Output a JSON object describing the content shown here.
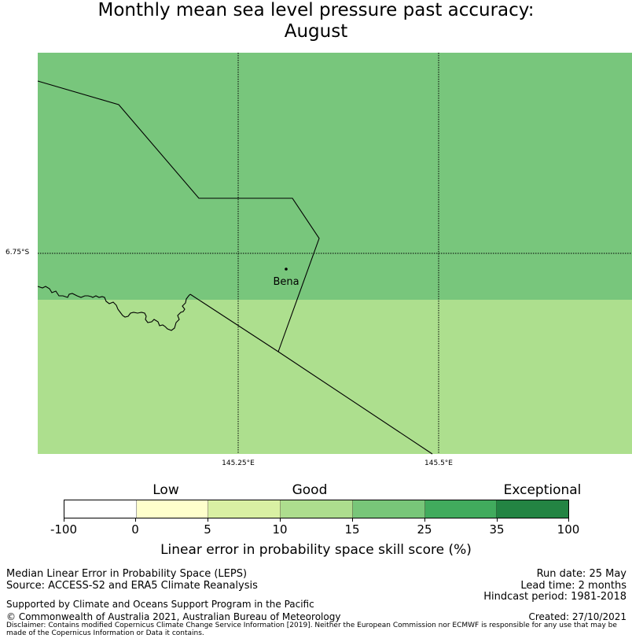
{
  "title": {
    "line1": "Monthly mean sea level pressure past accuracy:",
    "line2": "August"
  },
  "map": {
    "place_name": "Bena",
    "lat_label": "6.75°S",
    "lon_labels": [
      "145.25°E",
      "145.5°E"
    ],
    "region_colors": {
      "north": "#78c67c",
      "south": "#addf8e"
    }
  },
  "legend": {
    "categories": [
      "Low",
      "Good",
      "Exceptional"
    ],
    "ticks": [
      "-100",
      "0",
      "5",
      "10",
      "15",
      "25",
      "35",
      "100"
    ],
    "colors": [
      "#ffffff",
      "#ffffcc",
      "#d9f0a3",
      "#addd8e",
      "#78c679",
      "#41ab5d",
      "#238443"
    ],
    "caption": "Linear error in probability space skill score (%)"
  },
  "footer": {
    "metric": "Median Linear Error in Probability Space (LEPS)",
    "source": "Source: ACCESS-S2 and ERA5 Climate Reanalysis",
    "run_date": "Run date: 25 May",
    "lead_time": "Lead time: 2 months",
    "hindcast": "Hindcast period: 1981-2018",
    "support": "Supported by Climate and Oceans Support Program in the Pacific",
    "copyright": "© Commonwealth of Australia 2021, Australian Bureau of Meteorology",
    "created": "Created: 27/10/2021",
    "disclaimer": "Disclaimer: Contains modified Copernicus Climate Change Service Information [2019]. Neither the European Commission nor ECMWF is responsible for any use that may be made of the Copernicus Information or Data it contains."
  }
}
